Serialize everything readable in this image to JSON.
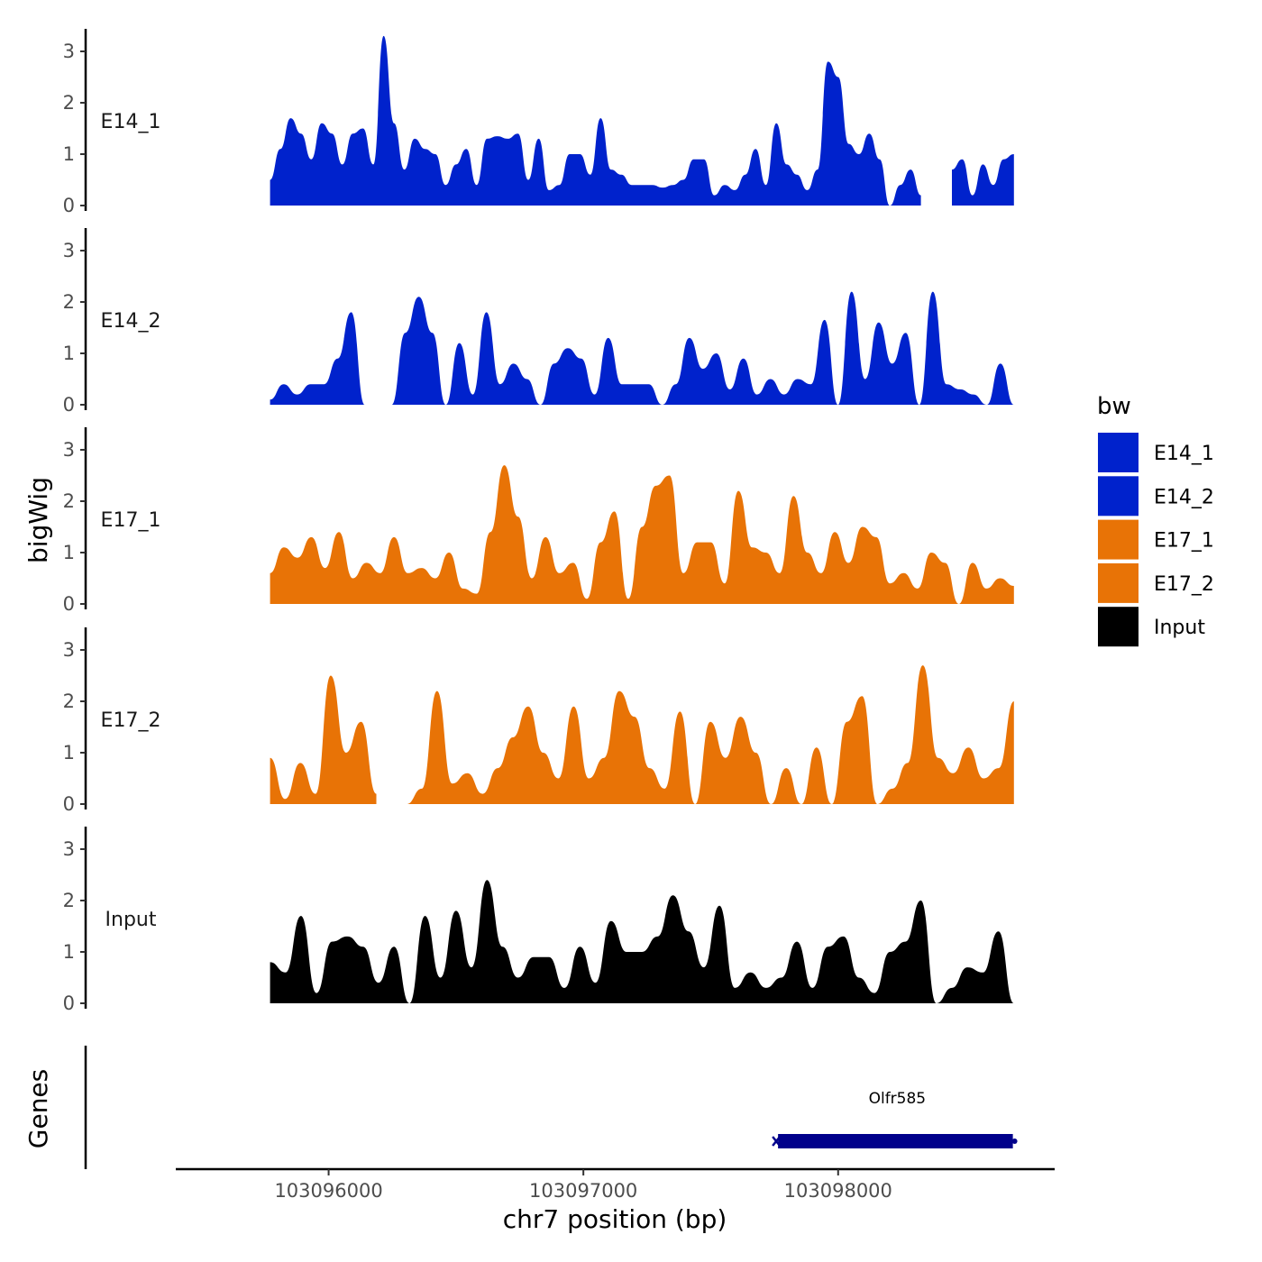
{
  "chart_data": {
    "type": "area",
    "ylabel": "bigWig",
    "xlabel": "chr7 position (bp)",
    "xlim": [
      103095400,
      103098850
    ],
    "x_range_data": [
      103095770,
      103098690
    ],
    "x_ticks": [
      103096000,
      103097000,
      103098000
    ],
    "x_tick_labels": [
      "103096000",
      "103097000",
      "103098000"
    ],
    "ylim": [
      0,
      3.4
    ],
    "y_ticks": [
      0,
      1,
      2,
      3
    ],
    "y_tick_labels": [
      "0",
      "1",
      "2",
      "3"
    ],
    "genes_track_label": "Genes",
    "genes": [
      {
        "name": "Olfr585",
        "start": 103097750,
        "end": 103098700,
        "strand": "-",
        "color": "#00008B"
      }
    ],
    "legend": {
      "title": "bw",
      "entries": [
        {
          "label": "E14_1",
          "color": "#0022CC"
        },
        {
          "label": "E14_2",
          "color": "#0022CC"
        },
        {
          "label": "E17_1",
          "color": "#E87306"
        },
        {
          "label": "E17_2",
          "color": "#E87306"
        },
        {
          "label": "Input",
          "color": "#000000"
        }
      ]
    },
    "series": [
      {
        "name": "E14_1",
        "color": "#0022CC",
        "values": [
          0.5,
          1.1,
          1.7,
          1.4,
          0.9,
          1.6,
          1.4,
          0.8,
          1.4,
          1.5,
          0.8,
          3.3,
          1.6,
          0.7,
          1.3,
          1.1,
          1.0,
          0.4,
          0.8,
          1.1,
          0.4,
          1.3,
          1.35,
          1.3,
          1.4,
          0.5,
          1.3,
          0.3,
          0.4,
          1.0,
          1.0,
          0.6,
          1.7,
          0.7,
          0.6,
          0.4,
          0.4,
          0.4,
          0.35,
          0.4,
          0.5,
          0.9,
          0.9,
          0.2,
          0.4,
          0.3,
          0.6,
          1.1,
          0.4,
          1.6,
          0.8,
          0.6,
          0.3,
          0.7,
          2.8,
          2.5,
          1.2,
          1.0,
          1.4,
          0.9,
          0.0,
          0.4,
          0.7,
          0.2,
          null,
          null,
          0.7,
          0.9,
          0.2,
          0.8,
          0.4,
          0.9,
          1.0
        ]
      },
      {
        "name": "E14_2",
        "color": "#0022CC",
        "values": [
          0.1,
          0.4,
          0.2,
          0.4,
          0.4,
          0.9,
          1.8,
          0.0,
          null,
          0.0,
          1.4,
          2.1,
          1.4,
          0.0,
          1.2,
          0.2,
          1.8,
          0.4,
          0.8,
          0.5,
          0.0,
          0.8,
          1.1,
          0.9,
          0.2,
          1.3,
          0.4,
          0.4,
          0.4,
          0.0,
          0.4,
          1.3,
          0.7,
          1.0,
          0.3,
          0.9,
          0.2,
          0.5,
          0.2,
          0.5,
          0.4,
          1.65,
          0.0,
          2.2,
          0.5,
          1.6,
          0.8,
          1.4,
          0.0,
          2.2,
          0.4,
          0.3,
          0.2,
          0.0,
          0.8,
          0.0
        ]
      },
      {
        "name": "E17_1",
        "color": "#E87306",
        "values": [
          0.6,
          1.1,
          0.9,
          1.3,
          0.7,
          1.4,
          0.5,
          0.8,
          0.6,
          1.3,
          0.6,
          0.7,
          0.5,
          1.0,
          0.3,
          0.2,
          1.4,
          2.7,
          1.7,
          0.5,
          1.3,
          0.6,
          0.8,
          0.1,
          1.2,
          1.8,
          0.1,
          1.5,
          2.3,
          2.5,
          0.6,
          1.2,
          1.2,
          0.4,
          2.2,
          1.1,
          1.0,
          0.6,
          2.1,
          1.0,
          0.6,
          1.4,
          0.8,
          1.5,
          1.3,
          0.4,
          0.6,
          0.3,
          1.0,
          0.8,
          0.0,
          0.8,
          0.3,
          0.5,
          0.35
        ]
      },
      {
        "name": "E17_2",
        "color": "#E87306",
        "values": [
          0.9,
          0.1,
          0.8,
          0.2,
          2.5,
          1.0,
          1.6,
          0.2,
          null,
          0.0,
          0.3,
          2.2,
          0.4,
          0.6,
          0.2,
          0.7,
          1.3,
          1.9,
          1.0,
          0.5,
          1.9,
          0.5,
          0.9,
          2.2,
          1.7,
          0.7,
          0.3,
          1.8,
          0.0,
          1.6,
          0.9,
          1.7,
          1.0,
          0.0,
          0.7,
          0.0,
          1.1,
          0.0,
          1.6,
          2.1,
          0.0,
          0.3,
          0.8,
          2.7,
          0.9,
          0.6,
          1.1,
          0.5,
          0.7,
          2.0
        ]
      },
      {
        "name": "Input",
        "color": "#000000",
        "values": [
          0.8,
          0.6,
          1.7,
          0.2,
          1.2,
          1.3,
          1.1,
          0.4,
          1.1,
          0.0,
          1.7,
          0.5,
          1.8,
          0.7,
          2.4,
          1.1,
          0.5,
          0.9,
          0.9,
          0.3,
          1.1,
          0.4,
          1.6,
          1.0,
          1.0,
          1.3,
          2.1,
          1.4,
          0.7,
          1.9,
          0.3,
          0.6,
          0.3,
          0.5,
          1.2,
          0.3,
          1.1,
          1.3,
          0.5,
          0.2,
          1.0,
          1.2,
          2.0,
          0.0,
          0.3,
          0.7,
          0.6,
          1.4,
          0.0
        ]
      }
    ]
  }
}
